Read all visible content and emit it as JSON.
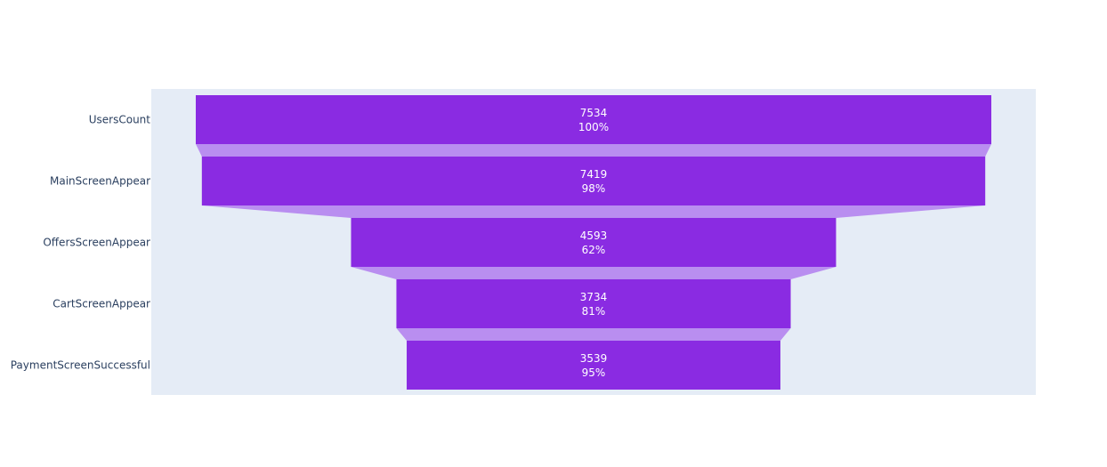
{
  "chart_data": {
    "type": "funnel",
    "categories": [
      "UsersCount",
      "MainScreenAppear",
      "OffersScreenAppear",
      "CartScreenAppear",
      "PaymentScreenSuccessful"
    ],
    "values": [
      7534,
      7419,
      4593,
      3734,
      3539
    ],
    "percent_labels": [
      "100%",
      "98%",
      "62%",
      "81%",
      "95%"
    ],
    "bar_color": "#8a2be2",
    "connector_color": "#b98ef0",
    "plot_background": "#e5ecf6"
  }
}
